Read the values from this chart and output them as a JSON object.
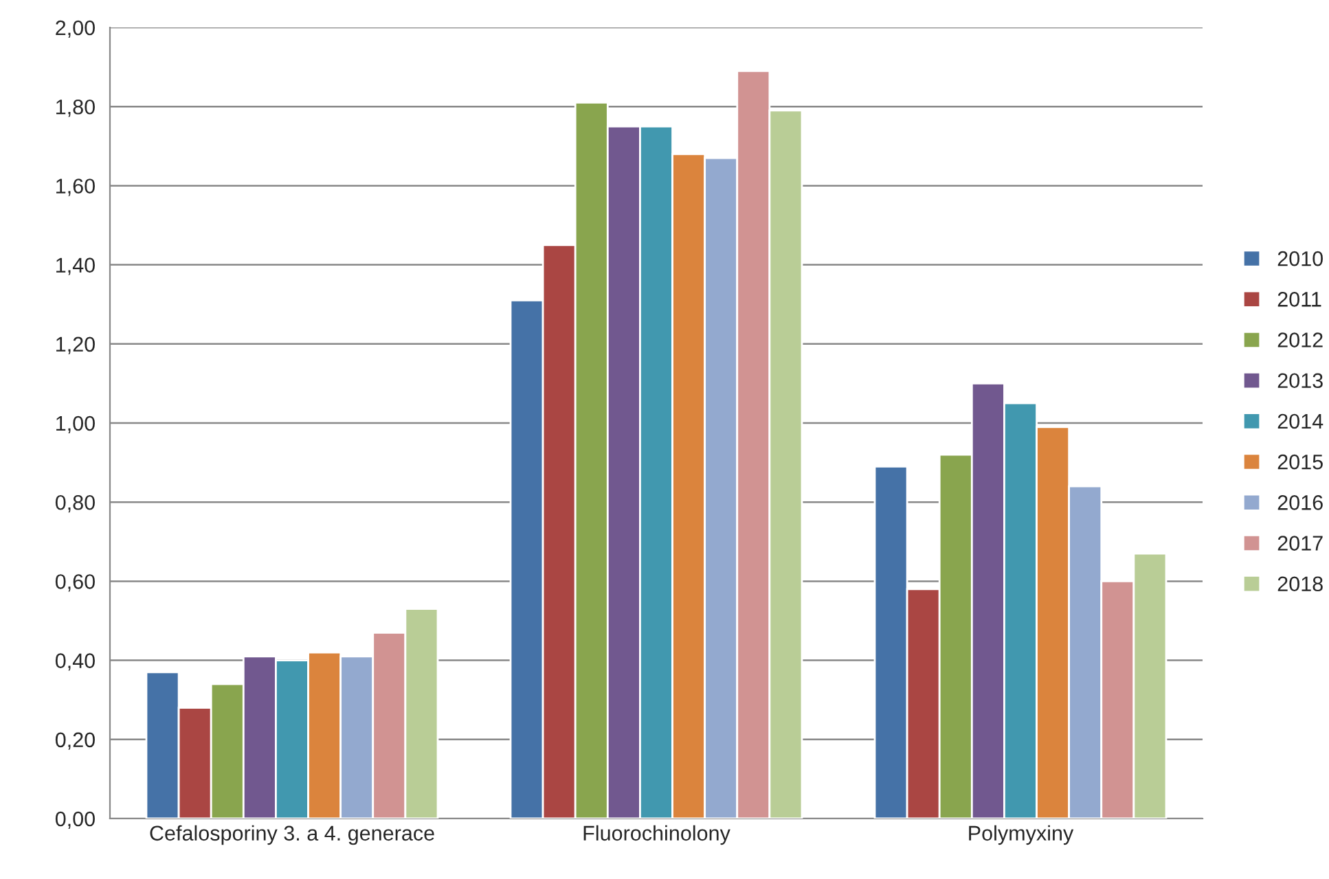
{
  "chart_data": {
    "type": "bar",
    "categories": [
      "Cefalosporiny 3. a 4. generace",
      "Fluorochinolony",
      "Polymyxiny"
    ],
    "series": [
      {
        "name": "2010",
        "color": "#4572a7",
        "values": [
          0.37,
          1.31,
          0.89
        ]
      },
      {
        "name": "2011",
        "color": "#aa4643",
        "values": [
          0.28,
          1.45,
          0.58
        ]
      },
      {
        "name": "2012",
        "color": "#89a54e",
        "values": [
          0.34,
          1.81,
          0.92
        ]
      },
      {
        "name": "2013",
        "color": "#71588f",
        "values": [
          0.41,
          1.75,
          1.1
        ]
      },
      {
        "name": "2014",
        "color": "#4198af",
        "values": [
          0.4,
          1.75,
          1.05
        ]
      },
      {
        "name": "2015",
        "color": "#db843d",
        "values": [
          0.42,
          1.68,
          0.99
        ]
      },
      {
        "name": "2016",
        "color": "#93a9cf",
        "values": [
          0.41,
          1.67,
          0.84
        ]
      },
      {
        "name": "2017",
        "color": "#d19392",
        "values": [
          0.47,
          1.89,
          0.6
        ]
      },
      {
        "name": "2018",
        "color": "#b9cd96",
        "values": [
          0.53,
          1.79,
          0.67
        ]
      }
    ],
    "ylim": [
      0,
      2
    ],
    "yticks": [
      {
        "value": 0,
        "label": "0,00"
      },
      {
        "value": 0.2,
        "label": "0,20"
      },
      {
        "value": 0.4,
        "label": "0,40"
      },
      {
        "value": 0.6,
        "label": "0,60"
      },
      {
        "value": 0.8,
        "label": "0,80"
      },
      {
        "value": 1.0,
        "label": "1,00"
      },
      {
        "value": 1.2,
        "label": "1,20"
      },
      {
        "value": 1.4,
        "label": "1,40"
      },
      {
        "value": 1.6,
        "label": "1,60"
      },
      {
        "value": 1.8,
        "label": "1,80"
      },
      {
        "value": 2.0,
        "label": "2,00"
      }
    ],
    "grid": "y",
    "legend": "right"
  }
}
